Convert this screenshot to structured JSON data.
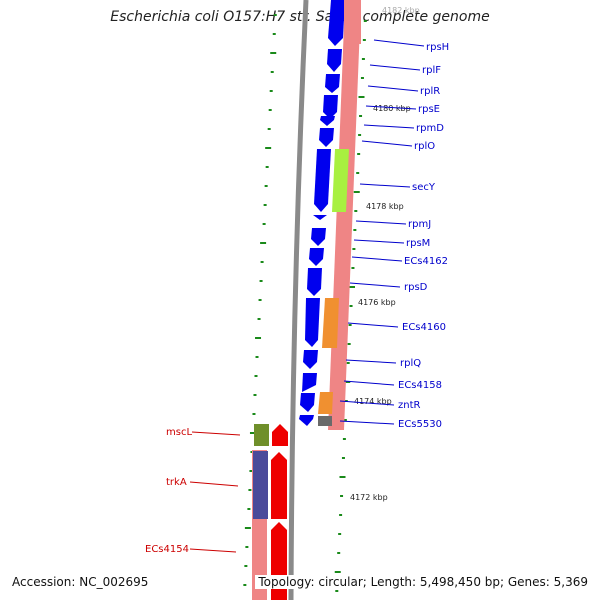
{
  "title": "Escherichia coli O157:H7 str. Sakai, complete genome",
  "footer": {
    "accession": "Accession: NC_002695",
    "topology": "Topology: circular; Length: 5,498,450 bp; Genes: 5,369"
  },
  "scale_labels": {
    "l4182": "4182 kbp",
    "l4180": "4180 kbp",
    "l4178": "4178 kbp",
    "l4176": "4176 kbp",
    "l4174": "4174 kbp",
    "l4172": "4172 kbp"
  },
  "right_genes": {
    "rpsH": "rpsH",
    "rplF": "rplF",
    "rplR": "rplR",
    "rpsE": "rpsE",
    "rpmD": "rpmD",
    "rplO": "rplO",
    "secY": "secY",
    "rpmJ": "rpmJ",
    "rpsM": "rpsM",
    "ECs4162": "ECs4162",
    "rpsD": "rpsD",
    "ECs4160": "ECs4160",
    "rplQ": "rplQ",
    "ECs4158": "ECs4158",
    "zntR": "zntR",
    "ECs5530": "ECs5530"
  },
  "left_genes": {
    "mscL": "mscL",
    "trkA": "trkA",
    "ECs4154": "ECs4154"
  },
  "colors": {
    "forward_cds": "#0000ee",
    "reverse_cds": "#ee0000",
    "ribosomal": "#ef8080",
    "transport": "#f09030",
    "secretion": "#a8f040",
    "unknown": "#707070",
    "membrane": "#6f8f2a",
    "enzyme": "#4a4a9a",
    "backbone": "#888888",
    "label_right": "#0000cc",
    "label_left": "#cc0000",
    "tick": "#1a8a1a"
  }
}
